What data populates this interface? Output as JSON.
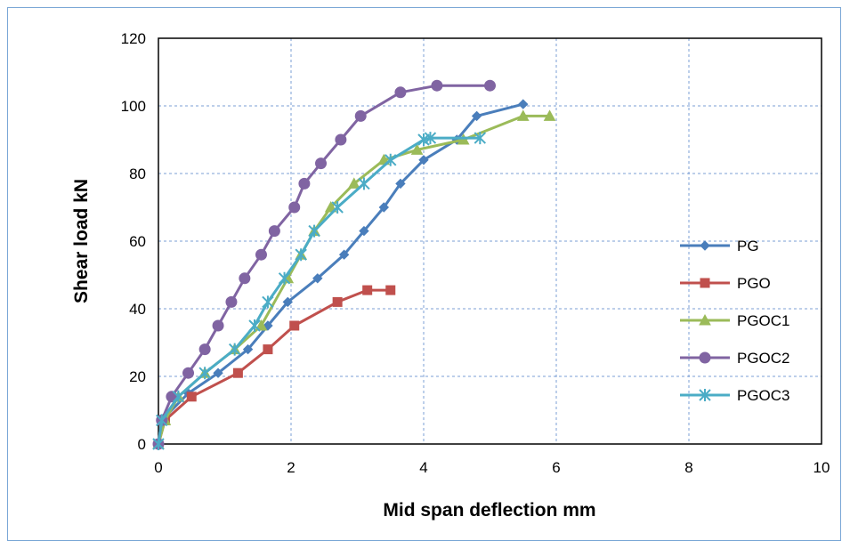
{
  "chart_data": {
    "type": "line",
    "title": "",
    "xlabel": "Mid span deflection mm",
    "ylabel": "Shear load kN",
    "xlim": [
      0,
      10
    ],
    "ylim": [
      0,
      120
    ],
    "xticks": [
      "0",
      "2",
      "4",
      "6",
      "8",
      "10"
    ],
    "yticks": [
      "0",
      "20",
      "40",
      "60",
      "80",
      "100",
      "120"
    ],
    "grid": "dashed",
    "legend_position": "right",
    "series": [
      {
        "name": "PG",
        "color": "#4a7ebb",
        "marker": "diamond",
        "x": [
          0,
          0.1,
          0.45,
          0.9,
          1.35,
          1.65,
          1.95,
          2.4,
          2.8,
          3.1,
          3.4,
          3.65,
          4.0,
          4.5,
          4.8,
          5.5
        ],
        "y": [
          0,
          8,
          15,
          21,
          28,
          35,
          42,
          49,
          56,
          63,
          70,
          77,
          84,
          90,
          97,
          100.5
        ]
      },
      {
        "name": "PGO",
        "color": "#c0504d",
        "marker": "square",
        "x": [
          0,
          0.1,
          0.5,
          1.2,
          1.65,
          2.05,
          2.7,
          3.15,
          3.5
        ],
        "y": [
          0,
          7,
          14,
          21,
          28,
          35,
          42,
          45.5,
          45.5
        ]
      },
      {
        "name": "PGOC1",
        "color": "#9bbb59",
        "marker": "triangle",
        "x": [
          0,
          0.1,
          0.3,
          0.7,
          1.15,
          1.55,
          1.95,
          2.15,
          2.35,
          2.6,
          2.95,
          3.4,
          3.9,
          4.6,
          5.5,
          5.9
        ],
        "y": [
          0,
          7,
          14,
          21,
          28,
          35,
          49,
          56,
          63,
          70,
          77,
          84,
          87,
          90,
          97,
          97
        ]
      },
      {
        "name": "PGOC2",
        "color": "#8064a2",
        "marker": "circle",
        "x": [
          0,
          0.05,
          0.2,
          0.45,
          0.7,
          0.9,
          1.1,
          1.3,
          1.55,
          1.75,
          2.05,
          2.2,
          2.45,
          2.75,
          3.05,
          3.65,
          4.2,
          5.0
        ],
        "y": [
          0,
          7,
          14,
          21,
          28,
          35,
          42,
          49,
          56,
          63,
          70,
          77,
          83,
          90,
          97,
          104,
          106,
          106
        ]
      },
      {
        "name": "PGOC3",
        "color": "#4bacc6",
        "marker": "star",
        "x": [
          0,
          0.05,
          0.3,
          0.7,
          1.15,
          1.45,
          1.65,
          1.9,
          2.15,
          2.35,
          2.7,
          3.1,
          3.5,
          4.0,
          4.1,
          4.85
        ],
        "y": [
          0,
          7,
          14,
          21,
          28,
          35,
          42,
          49,
          56,
          63,
          70,
          77,
          84,
          90,
          90.5,
          90.5
        ]
      }
    ]
  }
}
